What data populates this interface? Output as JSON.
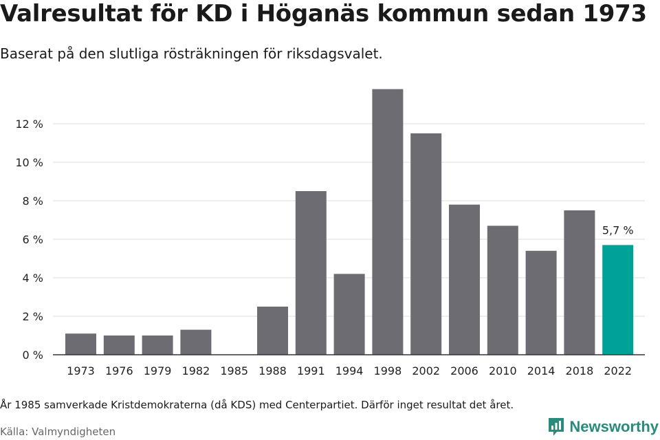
{
  "header": {
    "title": "Valresultat för KD i Höganäs kommun sedan 1973",
    "subtitle": "Baserat på den slutliga rösträkningen för riksdagsvalet."
  },
  "footer": {
    "note": "År 1985 samverkade Kristdemokraterna (då KDS) med Centerpartiet. Därför inget resultat det året.",
    "source": "Källa: Valmyndigheten",
    "brand": "Newsworthy"
  },
  "colors": {
    "bar": "#6d6c72",
    "highlight": "#00a297",
    "grid": "#dddddd",
    "axis": "#333333",
    "text": "#222222",
    "brand": "#2a8a7c"
  },
  "chart_data": {
    "type": "bar",
    "categories": [
      "1973",
      "1976",
      "1979",
      "1982",
      "1985",
      "1988",
      "1991",
      "1994",
      "1998",
      "2002",
      "2006",
      "2010",
      "2014",
      "2018",
      "2022"
    ],
    "values": [
      1.1,
      1.0,
      1.0,
      1.3,
      null,
      2.5,
      8.5,
      4.2,
      13.8,
      11.5,
      7.8,
      6.7,
      5.4,
      7.5,
      5.7
    ],
    "y_ticks": [
      0,
      2,
      4,
      6,
      8,
      10,
      12
    ],
    "y_tick_labels": [
      "0 %",
      "2 %",
      "4 %",
      "6 %",
      "8 %",
      "10 %",
      "12 %"
    ],
    "ylim": [
      0,
      14
    ],
    "grid": true,
    "highlight_category": "2022",
    "data_label": "5,7 %",
    "title": "",
    "xlabel": "",
    "ylabel": ""
  }
}
